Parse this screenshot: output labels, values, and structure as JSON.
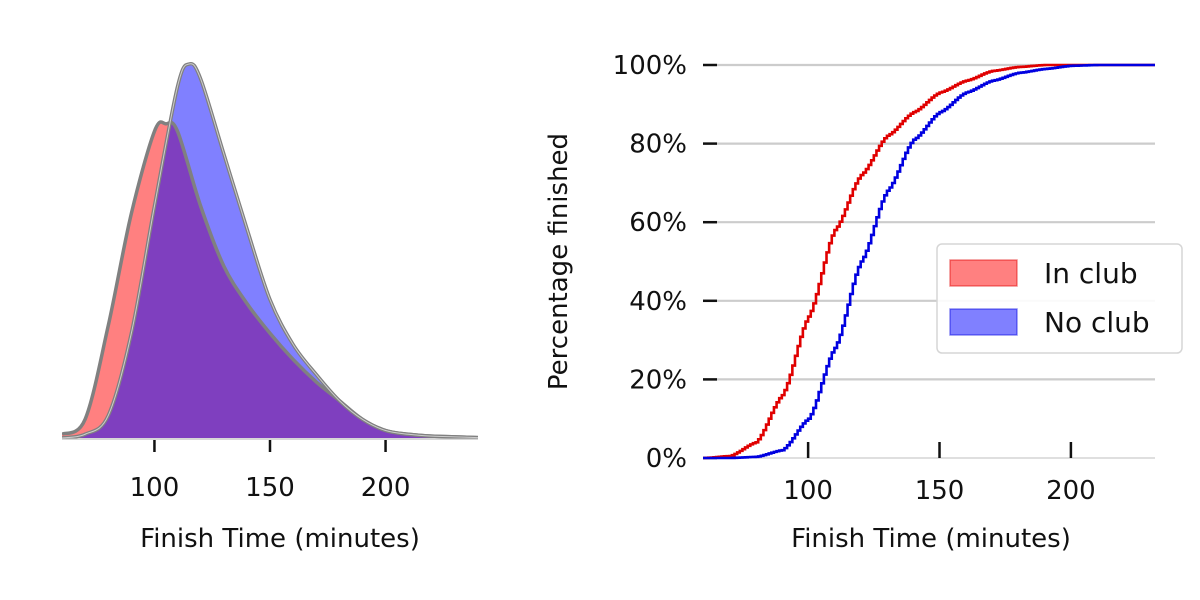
{
  "chart_data": [
    {
      "type": "area",
      "xlabel": "Finish Time (minutes)",
      "ylabel": "",
      "xlim": [
        60,
        240
      ],
      "ylim": [
        0,
        1
      ],
      "x_ticks": [
        100,
        150,
        200
      ],
      "y_ticks_visible": false,
      "grid": false,
      "series": [
        {
          "name": "In club",
          "color": "#ff8080",
          "x": [
            60,
            70,
            80,
            90,
            100,
            105,
            110,
            120,
            130,
            140,
            150,
            160,
            170,
            180,
            190,
            200,
            210,
            220,
            230,
            240
          ],
          "values": [
            0.01,
            0.05,
            0.3,
            0.6,
            0.82,
            0.84,
            0.82,
            0.62,
            0.46,
            0.36,
            0.28,
            0.21,
            0.15,
            0.1,
            0.05,
            0.02,
            0.01,
            0.005,
            0.003,
            0.001
          ]
        },
        {
          "name": "No club",
          "color": "#8080ff",
          "x": [
            60,
            70,
            80,
            90,
            100,
            110,
            115,
            120,
            130,
            140,
            150,
            160,
            170,
            180,
            190,
            200,
            210,
            220,
            230,
            240
          ],
          "values": [
            0.0,
            0.01,
            0.06,
            0.28,
            0.62,
            0.94,
            1.0,
            0.96,
            0.76,
            0.56,
            0.37,
            0.25,
            0.17,
            0.1,
            0.05,
            0.02,
            0.01,
            0.005,
            0.003,
            0.001
          ]
        }
      ]
    },
    {
      "type": "line",
      "step": true,
      "xlabel": "Finish Time (minutes)",
      "ylabel": "Percentage finished",
      "xlim": [
        60,
        232
      ],
      "ylim": [
        0,
        100
      ],
      "x_ticks": [
        100,
        150,
        200
      ],
      "y_ticks": [
        0,
        20,
        40,
        60,
        80,
        100
      ],
      "y_tick_labels": [
        "0%",
        "20%",
        "40%",
        "60%",
        "80%",
        "100%"
      ],
      "grid": "horizontal",
      "legend": "center-right",
      "series": [
        {
          "name": "In club",
          "color": "#e00000",
          "legend_color": "#ff8080",
          "x": [
            60,
            70,
            80,
            90,
            100,
            110,
            120,
            130,
            140,
            150,
            160,
            170,
            180,
            190,
            200,
            210,
            220,
            232
          ],
          "values": [
            0,
            0.5,
            4,
            16,
            36,
            58,
            72,
            82,
            88,
            93,
            96,
            98.5,
            99.5,
            100,
            100,
            100,
            100,
            100
          ]
        },
        {
          "name": "No club",
          "color": "#0000e0",
          "legend_color": "#8080ff",
          "x": [
            60,
            70,
            80,
            90,
            100,
            110,
            120,
            130,
            140,
            150,
            160,
            170,
            180,
            190,
            200,
            210,
            220,
            232
          ],
          "values": [
            0,
            0,
            0.3,
            2,
            10,
            28,
            50,
            68,
            81,
            88,
            93,
            96,
            98,
            99,
            99.8,
            100,
            100,
            100
          ]
        }
      ]
    }
  ]
}
